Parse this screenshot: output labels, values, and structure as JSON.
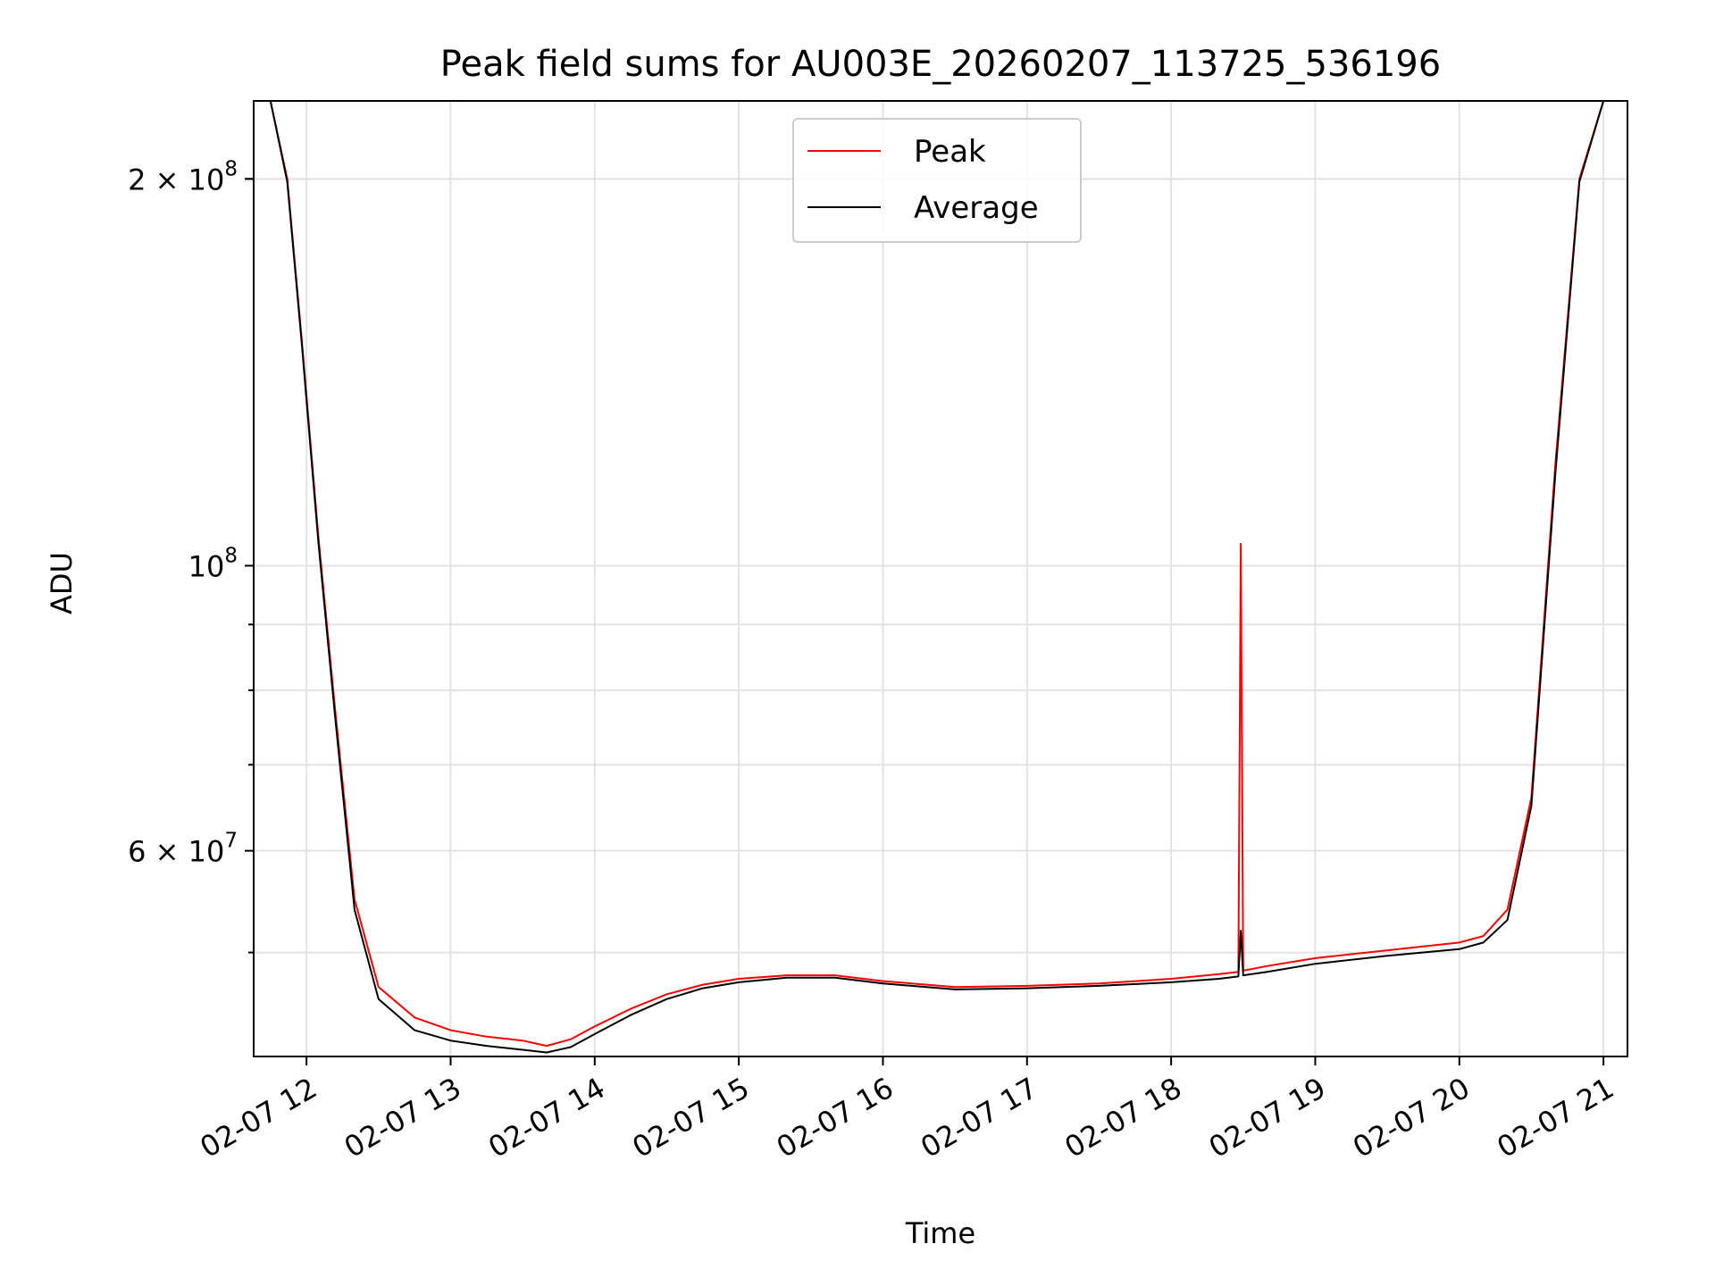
{
  "chart_data": {
    "type": "line",
    "title": "Peak field sums for AU003E_20260207_113725_536196",
    "xlabel": "Time",
    "ylabel": "ADU",
    "x_scale": "time",
    "y_scale": "log",
    "xlim": [
      "02-07 11:38",
      "02-07 21:10"
    ],
    "ylim": [
      41500000,
      230000000
    ],
    "x_ticks": [
      "02-07 12",
      "02-07 13",
      "02-07 14",
      "02-07 15",
      "02-07 16",
      "02-07 17",
      "02-07 18",
      "02-07 19",
      "02-07 20",
      "02-07 21"
    ],
    "y_ticks": [
      {
        "value": 200000000,
        "mantissa": "2",
        "exponent": "8"
      },
      {
        "value": 100000000,
        "mantissa": "",
        "exponent": "8"
      },
      {
        "value": 60000000,
        "mantissa": "6",
        "exponent": "7"
      }
    ],
    "grid": true,
    "legend_position": "upper center",
    "series": [
      {
        "name": "Peak",
        "color": "#ff0000",
        "x": [
          "02-07 11:45",
          "02-07 11:52",
          "02-07 11:58",
          "02-07 12:05",
          "02-07 12:12",
          "02-07 12:20",
          "02-07 12:30",
          "02-07 12:45",
          "02-07 13:00",
          "02-07 13:15",
          "02-07 13:30",
          "02-07 13:40",
          "02-07 13:50",
          "02-07 14:00",
          "02-07 14:15",
          "02-07 14:30",
          "02-07 14:45",
          "02-07 15:00",
          "02-07 15:20",
          "02-07 15:40",
          "02-07 16:00",
          "02-07 16:30",
          "02-07 17:00",
          "02-07 17:30",
          "02-07 18:00",
          "02-07 18:20",
          "02-07 18:28",
          "02-07 18:29",
          "02-07 18:30",
          "02-07 18:40",
          "02-07 19:00",
          "02-07 19:30",
          "02-07 20:00",
          "02-07 20:10",
          "02-07 20:20",
          "02-07 20:30",
          "02-07 20:40",
          "02-07 20:50",
          "02-07 21:00"
        ],
        "values": [
          230000000,
          200000000,
          150000000,
          105000000,
          77000000,
          55000000,
          47000000,
          44500000,
          43500000,
          43000000,
          42700000,
          42300000,
          42800000,
          43800000,
          45200000,
          46400000,
          47200000,
          47700000,
          48000000,
          48000000,
          47500000,
          47000000,
          47100000,
          47300000,
          47700000,
          48100000,
          48300000,
          104000000,
          48400000,
          48800000,
          49500000,
          50200000,
          50900000,
          51500000,
          54000000,
          66000000,
          120000000,
          200000000,
          230000000
        ]
      },
      {
        "name": "Average",
        "color": "#000000",
        "x": [
          "02-07 11:45",
          "02-07 11:52",
          "02-07 11:58",
          "02-07 12:05",
          "02-07 12:12",
          "02-07 12:20",
          "02-07 12:30",
          "02-07 12:45",
          "02-07 13:00",
          "02-07 13:15",
          "02-07 13:30",
          "02-07 13:40",
          "02-07 13:50",
          "02-07 14:00",
          "02-07 14:15",
          "02-07 14:30",
          "02-07 14:45",
          "02-07 15:00",
          "02-07 15:20",
          "02-07 15:40",
          "02-07 16:00",
          "02-07 16:30",
          "02-07 17:00",
          "02-07 17:30",
          "02-07 18:00",
          "02-07 18:20",
          "02-07 18:28",
          "02-07 18:29",
          "02-07 18:30",
          "02-07 18:40",
          "02-07 19:00",
          "02-07 19:30",
          "02-07 20:00",
          "02-07 20:10",
          "02-07 20:20",
          "02-07 20:30",
          "02-07 20:40",
          "02-07 20:50",
          "02-07 21:00"
        ],
        "values": [
          230000000,
          199000000,
          149000000,
          104000000,
          76000000,
          54000000,
          46000000,
          43500000,
          42700000,
          42300000,
          42000000,
          41800000,
          42200000,
          43200000,
          44700000,
          46000000,
          46900000,
          47400000,
          47800000,
          47800000,
          47300000,
          46800000,
          46900000,
          47100000,
          47400000,
          47700000,
          47900000,
          52000000,
          48000000,
          48300000,
          49000000,
          49700000,
          50300000,
          50900000,
          53000000,
          65000000,
          118000000,
          199000000,
          230000000
        ]
      }
    ]
  }
}
